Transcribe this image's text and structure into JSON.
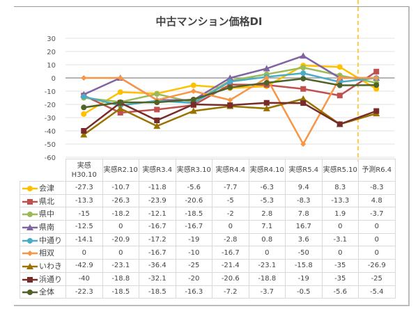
{
  "chart_data": {
    "type": "line",
    "title": "中古マンション価格DI",
    "categories": [
      "実感H30.10",
      "実感R2.10",
      "実感R3.4",
      "実感R3.10",
      "実感R4.4",
      "実感R4.10",
      "実感R5.4",
      "実感R5.10",
      "予測R6.4"
    ],
    "ylim": [
      -60,
      30
    ],
    "yticks": [
      30,
      20,
      10,
      0,
      -10,
      -20,
      -30,
      -40,
      -50,
      -60
    ],
    "grid": true,
    "legend": "data-table",
    "forecast_divider": "between 実感R5.10 and 予測R6.4",
    "series": [
      {
        "name": "会津",
        "color": "#FFC000",
        "marker": "circle",
        "values": [
          -27.3,
          -10.7,
          -11.8,
          -5.6,
          -7.7,
          -6.3,
          9.4,
          8.3,
          -8.3
        ]
      },
      {
        "name": "県北",
        "color": "#C0504D",
        "marker": "square",
        "values": [
          -13.3,
          -26.3,
          -23.9,
          -20.6,
          -5,
          -5.3,
          -8.3,
          -13.3,
          4.8
        ]
      },
      {
        "name": "県中",
        "color": "#9BBB59",
        "marker": "circle",
        "values": [
          -15,
          -18.2,
          -12.1,
          -18.5,
          -2,
          2.8,
          7.8,
          1.9,
          -3.7
        ]
      },
      {
        "name": "県南",
        "color": "#8064A2",
        "marker": "triangle",
        "values": [
          -12.5,
          0,
          -16.7,
          -16.7,
          0,
          7.1,
          16.7,
          0,
          0
        ]
      },
      {
        "name": "中通り",
        "color": "#4BACC6",
        "marker": "circle",
        "values": [
          -14.1,
          -20.9,
          -17.2,
          -19,
          -2.8,
          0.8,
          3.6,
          -3.1,
          0
        ]
      },
      {
        "name": "相双",
        "color": "#F79646",
        "marker": "diamond",
        "values": [
          0,
          0,
          -16.7,
          -10,
          -16.7,
          0,
          -50,
          0,
          0
        ]
      },
      {
        "name": "いわき",
        "color": "#997300",
        "marker": "triangle",
        "values": [
          -42.9,
          -23.1,
          -36.4,
          -25,
          -21.4,
          -23.1,
          -15.8,
          -35,
          -26.9
        ]
      },
      {
        "name": "浜通り",
        "color": "#772C2A",
        "marker": "square",
        "values": [
          -40,
          -18.8,
          -32.1,
          -20,
          -20.6,
          -18.8,
          -19,
          -35,
          -25
        ]
      },
      {
        "name": "全体",
        "color": "#4F6228",
        "marker": "circle",
        "values": [
          -22.3,
          -18.5,
          -18.5,
          -16.3,
          -7.2,
          -3.7,
          -0.5,
          -5.6,
          -5.4
        ]
      }
    ]
  }
}
